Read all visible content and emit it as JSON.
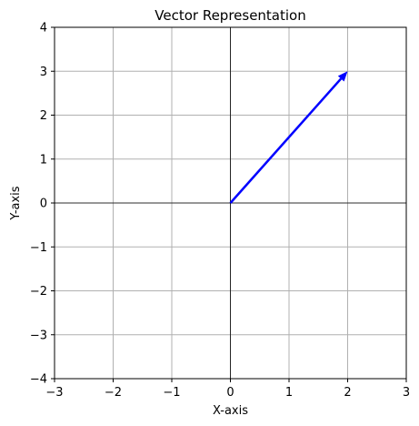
{
  "chart_data": {
    "type": "line",
    "title": "Vector Representation",
    "xlabel": "X-axis",
    "ylabel": "Y-axis",
    "xlim": [
      -3,
      3
    ],
    "ylim": [
      -4,
      4
    ],
    "xticks": [
      -3,
      -2,
      -1,
      0,
      1,
      2,
      3
    ],
    "yticks": [
      -4,
      -3,
      -2,
      -1,
      0,
      1,
      2,
      3,
      4
    ],
    "xtick_labels": [
      "−3",
      "−2",
      "−1",
      "0",
      "1",
      "2",
      "3"
    ],
    "ytick_labels": [
      "−4",
      "−3",
      "−2",
      "−1",
      "0",
      "1",
      "2",
      "3",
      "4"
    ],
    "grid": true,
    "reference_lines": {
      "x": 0,
      "y": 0
    },
    "vectors": [
      {
        "origin": [
          0,
          0
        ],
        "components": [
          2,
          3
        ],
        "color": "#0000ff"
      }
    ],
    "colors": {
      "grid": "#b0b0b0",
      "reference": "#000000",
      "vector": "#0000ff"
    }
  }
}
